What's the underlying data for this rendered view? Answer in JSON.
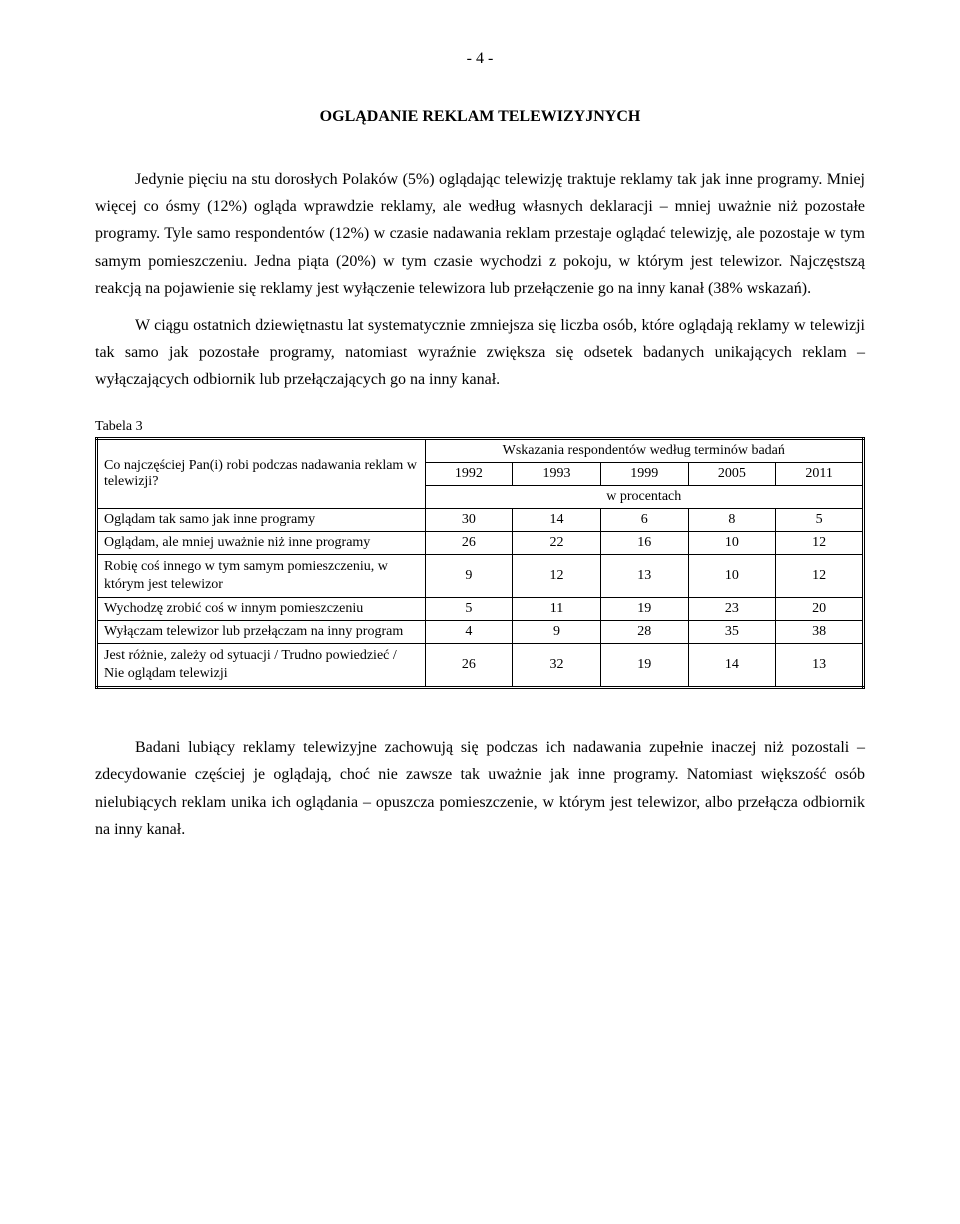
{
  "page_number": "- 4 -",
  "section_title": "OGLĄDANIE REKLAM TELEWIZYJNYCH",
  "paragraphs": {
    "p1": "Jedynie pięciu na stu dorosłych Polaków (5%) oglądając telewizję traktuje reklamy tak jak inne programy. Mniej więcej co ósmy (12%) ogląda wprawdzie reklamy, ale według własnych deklaracji – mniej uważnie niż pozostałe programy. Tyle samo respondentów (12%) w czasie nadawania reklam przestaje oglądać telewizję, ale pozostaje w tym samym pomieszczeniu. Jedna piąta (20%) w tym czasie wychodzi z pokoju, w którym jest telewizor. Najczęstszą reakcją na pojawienie się reklamy jest wyłączenie telewizora lub przełączenie go na inny kanał (38% wskazań).",
    "p2": "W ciągu ostatnich dziewiętnastu lat systematycznie zmniejsza się liczba osób, które oglądają reklamy w telewizji tak samo jak pozostałe programy, natomiast wyraźnie zwiększa się odsetek badanych unikających reklam – wyłączających odbiornik lub przełączających go na inny kanał.",
    "p3": "Badani lubiący reklamy telewizyjne zachowują się podczas ich nadawania zupełnie inaczej niż pozostali – zdecydowanie częściej je oglądają, choć nie zawsze tak uważnie jak inne programy. Natomiast większość osób nielubiących reklam unika ich oglądania – opuszcza pomieszczenie, w którym jest telewizor, albo przełącza odbiornik na inny kanał."
  },
  "table": {
    "label": "Tabela 3",
    "question": "Co najczęściej Pan(i) robi podczas nadawania reklam w telewizji?",
    "header_title": "Wskazania respondentów według terminów badań",
    "unit": "w procentach",
    "years": [
      "1992",
      "1993",
      "1999",
      "2005",
      "2011"
    ],
    "rows": [
      {
        "label": "Oglądam tak samo jak inne programy",
        "vals": [
          "30",
          "14",
          "6",
          "8",
          "5"
        ]
      },
      {
        "label": "Oglądam, ale mniej uważnie niż inne programy",
        "vals": [
          "26",
          "22",
          "16",
          "10",
          "12"
        ]
      },
      {
        "label": "Robię coś innego w tym samym pomieszczeniu, w którym jest telewizor",
        "vals": [
          "9",
          "12",
          "13",
          "10",
          "12"
        ]
      },
      {
        "label": "Wychodzę zrobić coś w innym pomieszczeniu",
        "vals": [
          "5",
          "11",
          "19",
          "23",
          "20"
        ]
      },
      {
        "label": "Wyłączam telewizor lub przełączam na inny program",
        "vals": [
          "4",
          "9",
          "28",
          "35",
          "38"
        ]
      },
      {
        "label": "Jest różnie, zależy od sytuacji / Trudno powiedzieć / Nie oglądam telewizji",
        "vals": [
          "26",
          "32",
          "19",
          "14",
          "13"
        ]
      }
    ]
  }
}
